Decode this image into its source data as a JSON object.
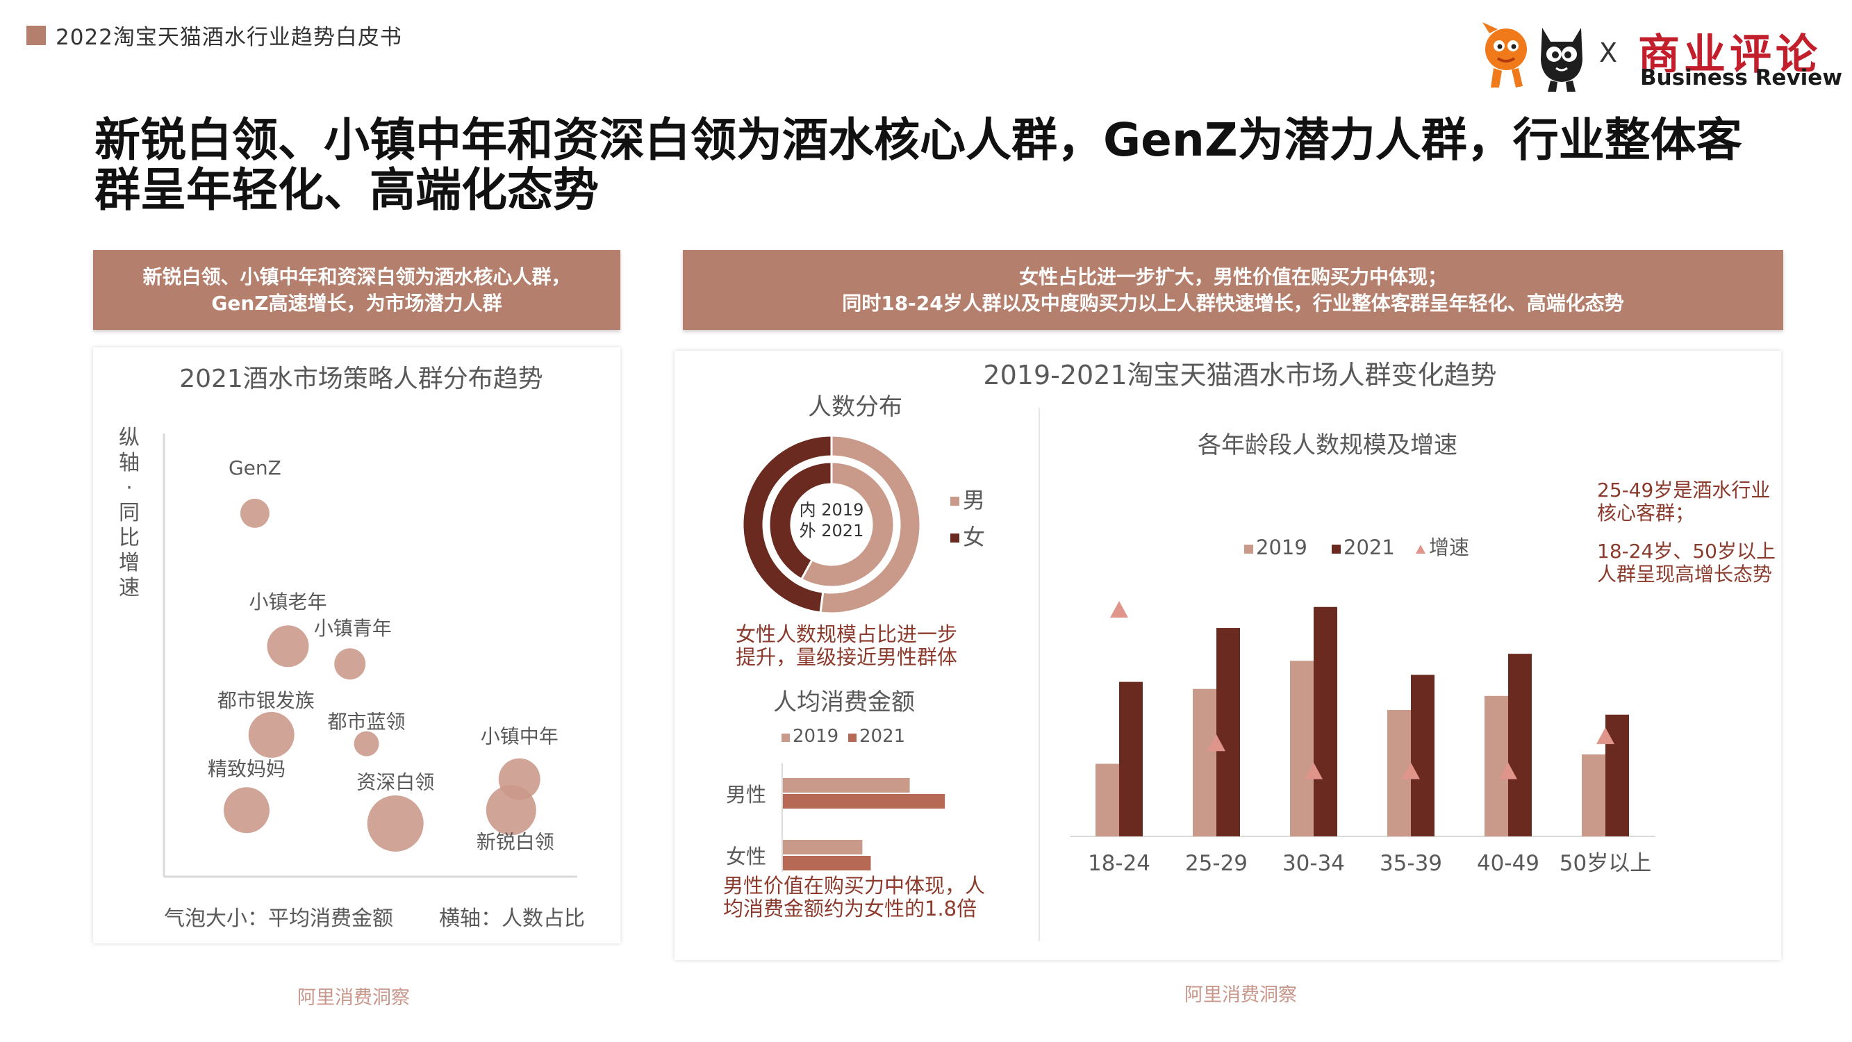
{
  "header": {
    "doc_title": "2022淘宝天猫酒水行业趋势白皮书",
    "headline": "新锐白领、小镇中年和资深白领为酒水核心人群，GenZ为潜力人群，行业整体客群呈年轻化、高端化态势",
    "logo": {
      "separator": "X",
      "brand_cn": "商业评论",
      "brand_en": "Business Review"
    }
  },
  "left": {
    "banner": [
      "新锐白领、小镇中年和资深白领为酒水核心人群，",
      "GenZ高速增长，为市场潜力人群"
    ],
    "source": "阿里消费洞察"
  },
  "right": {
    "banner": [
      "女性占比进一步扩大，男性价值在购买力中体现；",
      "同时18-24岁人群以及中度购买力以上人群快速增长，行业整体客群呈年轻化、高端化态势"
    ],
    "title": "2019-2021淘宝天猫酒水市场人群变化趋势",
    "source": "阿里消费洞察"
  },
  "colors": {
    "banner": "#b4806d",
    "bubble": "#c9998a",
    "light": "#c99a8a",
    "dark": "#6b2a20",
    "mid": "#b66a55",
    "triangle": "#e0958a",
    "source_text": "#c8968a"
  },
  "chart_data": [
    {
      "id": "bubble",
      "type": "scatter",
      "title": "2021酒水市场策略人群分布趋势",
      "ylabel": "纵轴：同比增速",
      "xlabel": "横轴：人数占比",
      "size_label": "气泡大小：平均消费金额",
      "grid": false,
      "points": [
        {
          "name": "GenZ",
          "x": 0.22,
          "y": 0.82,
          "size": 14
        },
        {
          "name": "小镇老年",
          "x": 0.3,
          "y": 0.52,
          "size": 20
        },
        {
          "name": "小镇青年",
          "x": 0.45,
          "y": 0.48,
          "size": 15
        },
        {
          "name": "都市银发族",
          "x": 0.26,
          "y": 0.32,
          "size": 22
        },
        {
          "name": "都市蓝领",
          "x": 0.49,
          "y": 0.3,
          "size": 12
        },
        {
          "name": "小镇中年",
          "x": 0.86,
          "y": 0.22,
          "size": 20
        },
        {
          "name": "精致妈妈",
          "x": 0.2,
          "y": 0.15,
          "size": 22
        },
        {
          "name": "资深白领",
          "x": 0.56,
          "y": 0.12,
          "size": 27
        },
        {
          "name": "新锐白领",
          "x": 0.84,
          "y": 0.15,
          "size": 24
        }
      ]
    },
    {
      "id": "donut",
      "type": "pie",
      "title": "人数分布",
      "center_label": [
        "内 2019",
        "外 2021"
      ],
      "legend": [
        "男",
        "女"
      ],
      "inner_2019": {
        "男": 58,
        "女": 42
      },
      "outer_2021": {
        "男": 52,
        "女": 48
      },
      "note": [
        "女性人数规模占比进一步",
        "提升，量级接近男性群体"
      ]
    },
    {
      "id": "spend",
      "type": "bar",
      "orientation": "horizontal",
      "title": "人均消费金额",
      "categories": [
        "男性",
        "女性"
      ],
      "series": [
        {
          "name": "2019",
          "values": [
            1.66,
            1.04
          ]
        },
        {
          "name": "2021",
          "values": [
            2.12,
            1.15
          ]
        }
      ],
      "note": [
        "男性价值在购买力中体现，人",
        "均消费金额约为女性的1.8倍"
      ]
    },
    {
      "id": "age",
      "type": "bar",
      "title": "各年龄段人数规模及增速",
      "categories": [
        "18-24",
        "25-29",
        "30-34",
        "35-39",
        "40-49",
        "50岁以上"
      ],
      "series": [
        {
          "name": "2019",
          "values": [
            0.31,
            0.63,
            0.75,
            0.54,
            0.6,
            0.35
          ]
        },
        {
          "name": "2021",
          "values": [
            0.66,
            0.89,
            0.98,
            0.69,
            0.78,
            0.52
          ]
        },
        {
          "name": "增速",
          "kind": "marker",
          "values": [
            0.97,
            0.4,
            0.28,
            0.28,
            0.28,
            0.43
          ]
        }
      ],
      "ylim": [
        0,
        1
      ],
      "annotation": [
        "25-49岁是酒水行业",
        "核心客群；",
        "18-24岁、50岁以上",
        "人群呈现高增长态势"
      ]
    }
  ]
}
